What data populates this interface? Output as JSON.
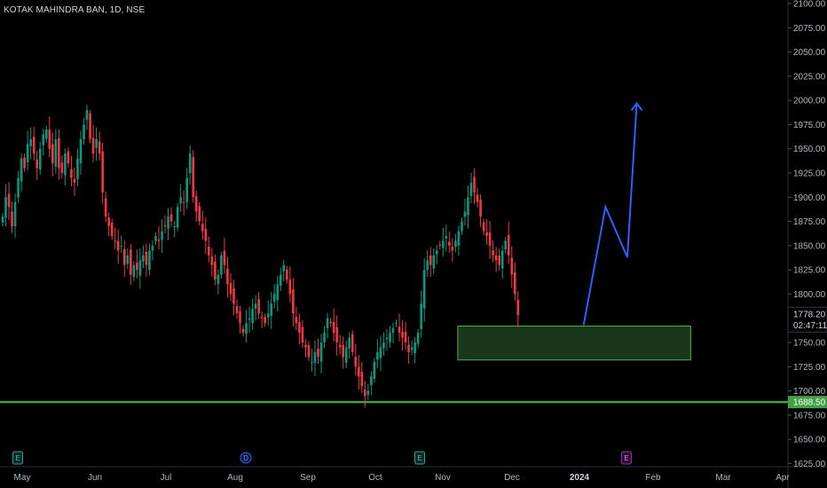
{
  "header": {
    "symbol": "KOTAK MAHINDRA BAN, 1D, NSE"
  },
  "chart_data": {
    "type": "candlestick",
    "title": "KOTAK MAHINDRA BAN, 1D, NSE",
    "ylim": [
      1620,
      2100
    ],
    "y_ticks": [
      "2100.00",
      "2075.00",
      "2050.00",
      "2025.00",
      "2000.00",
      "1975.00",
      "1950.00",
      "1925.00",
      "1900.00",
      "1875.00",
      "1850.00",
      "1825.00",
      "1800.00",
      "1750.00",
      "1725.00",
      "1700.00",
      "1675.00",
      "1650.00",
      "1625.00"
    ],
    "x_labels": [
      {
        "label": "May",
        "bold": false
      },
      {
        "label": "Jun",
        "bold": false
      },
      {
        "label": "Jul",
        "bold": false
      },
      {
        "label": "Aug",
        "bold": false
      },
      {
        "label": "Sep",
        "bold": false
      },
      {
        "label": "Oct",
        "bold": false
      },
      {
        "label": "Nov",
        "bold": false
      },
      {
        "label": "Dec",
        "bold": false
      },
      {
        "label": "2024",
        "bold": true
      },
      {
        "label": "Feb",
        "bold": false
      },
      {
        "label": "Mar",
        "bold": false
      },
      {
        "label": "Apr",
        "bold": false
      }
    ],
    "close_series": [
      1880,
      1900,
      1890,
      1870,
      1895,
      1920,
      1940,
      1930,
      1955,
      1960,
      1945,
      1930,
      1950,
      1965,
      1970,
      1950,
      1935,
      1960,
      1930,
      1925,
      1945,
      1935,
      1920,
      1915,
      1940,
      1960,
      1975,
      1990,
      1960,
      1945,
      1960,
      1945,
      1905,
      1880,
      1870,
      1860,
      1855,
      1845,
      1850,
      1830,
      1840,
      1820,
      1830,
      1825,
      1835,
      1840,
      1830,
      1845,
      1850,
      1860,
      1855,
      1865,
      1870,
      1880,
      1875,
      1870,
      1890,
      1900,
      1895,
      1920,
      1945,
      1900,
      1885,
      1875,
      1865,
      1855,
      1840,
      1830,
      1815,
      1820,
      1840,
      1830,
      1810,
      1800,
      1790,
      1780,
      1770,
      1760,
      1770,
      1775,
      1785,
      1790,
      1780,
      1775,
      1770,
      1780,
      1790,
      1800,
      1810,
      1820,
      1830,
      1815,
      1800,
      1780,
      1770,
      1760,
      1750,
      1745,
      1735,
      1730,
      1740,
      1735,
      1750,
      1760,
      1775,
      1770,
      1760,
      1750,
      1745,
      1735,
      1745,
      1755,
      1740,
      1725,
      1715,
      1705,
      1695,
      1700,
      1715,
      1730,
      1740,
      1745,
      1750,
      1755,
      1760,
      1765,
      1770,
      1760,
      1755,
      1750,
      1740,
      1745,
      1750,
      1760,
      1790,
      1825,
      1835,
      1830,
      1840,
      1845,
      1850,
      1855,
      1860,
      1850,
      1845,
      1855,
      1865,
      1875,
      1885,
      1900,
      1915,
      1905,
      1895,
      1880,
      1865,
      1860,
      1850,
      1840,
      1835,
      1830,
      1845,
      1855,
      1840,
      1820,
      1800,
      1778.2
    ],
    "last_price": "1778.20",
    "countdown": "02:47:11",
    "support_level": "1688.50",
    "support_value": 1688.5,
    "demand_zone": {
      "start_index": 146,
      "end_index": 220,
      "top": 1767,
      "bottom": 1732
    },
    "projection": {
      "points": [
        {
          "index": 186,
          "value": 1768
        },
        {
          "index": 193,
          "value": 1890
        },
        {
          "index": 200,
          "value": 1838
        },
        {
          "index": 203,
          "value": 1997
        }
      ]
    },
    "markers": [
      {
        "index": 5,
        "letter": "E",
        "kind": "earnings"
      },
      {
        "index": 73,
        "letter": "D",
        "kind": "dividend"
      },
      {
        "index": 126,
        "letter": "E",
        "kind": "earnings"
      },
      {
        "index": 188,
        "letter": "E",
        "kind": "earnings-upcoming"
      }
    ],
    "colors": {
      "up": "#089981",
      "down": "#f23645",
      "zone_fill": "#1e3d1e",
      "zone_stroke": "#4caf50",
      "support": "#43a047",
      "projection": "#2962ff",
      "last_badge": "#000000",
      "support_badge": "#43a047"
    }
  }
}
